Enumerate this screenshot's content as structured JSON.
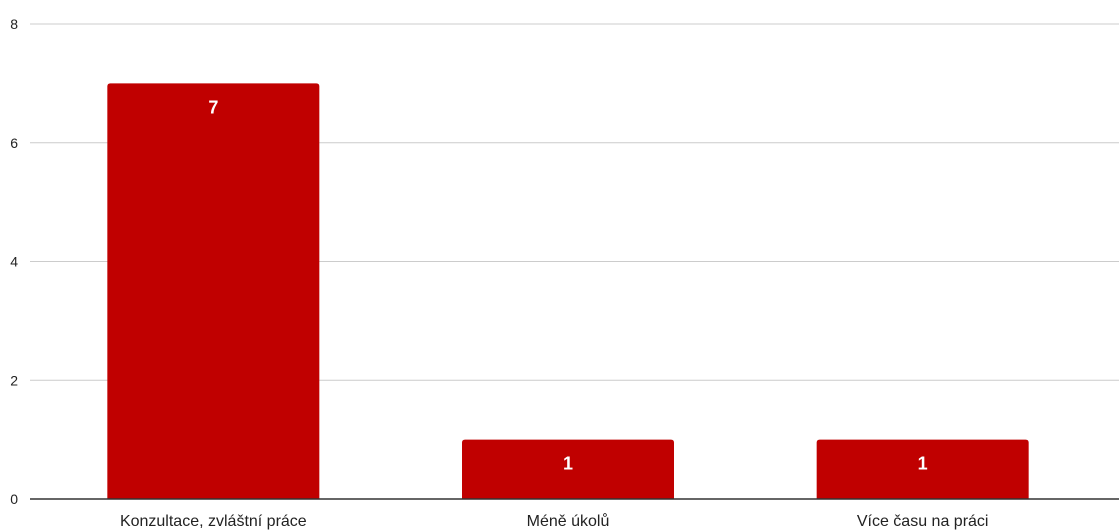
{
  "chart_data": {
    "type": "bar",
    "categories": [
      "Konzultace, zvláštní práce",
      "Méně úkolů",
      "Více času na práci"
    ],
    "values": [
      7,
      1,
      1
    ],
    "data_labels": [
      "7",
      "1",
      "1"
    ],
    "y_ticks": [
      0,
      2,
      4,
      6,
      8
    ],
    "ylim": [
      0,
      8
    ],
    "grid": true,
    "legend": "none",
    "title": "",
    "xlabel": "",
    "ylabel": "",
    "colors": {
      "bar": "#c00000",
      "grid": "#cccccc",
      "baseline": "#333333"
    }
  }
}
